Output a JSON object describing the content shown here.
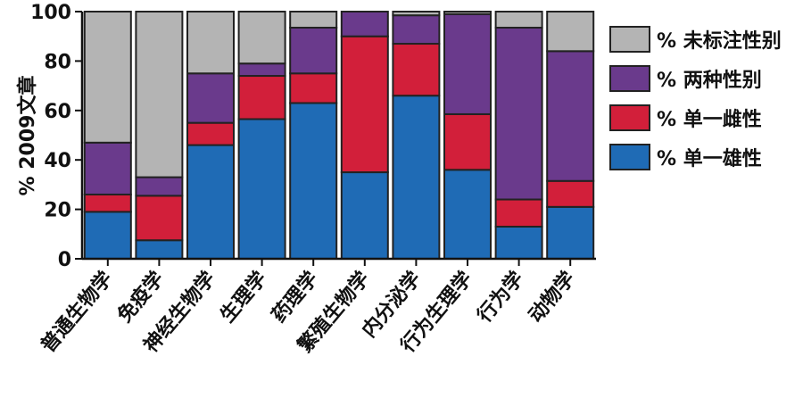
{
  "chart_data": {
    "type": "bar",
    "stacked": true,
    "ylabel": "% 2009文章",
    "ylim": [
      0,
      100
    ],
    "yticks": [
      "0",
      "20",
      "40",
      "60",
      "80",
      "100"
    ],
    "legend_position": "right",
    "categories": [
      "普通生物学",
      "免疫学",
      "神经生物学",
      "生理学",
      "药理学",
      "繁殖生物学",
      "内分泌学",
      "行为生理学",
      "行为学",
      "动物学"
    ],
    "series": [
      {
        "name": "% 单一雄性",
        "color": "#1f6bb5",
        "values": [
          19,
          7.5,
          46,
          56.5,
          63,
          35,
          66,
          36,
          13,
          21
        ]
      },
      {
        "name": "% 单一雌性",
        "color": "#d21f3a",
        "values": [
          7,
          18,
          9,
          17.5,
          12,
          55,
          21,
          22.5,
          11,
          10.5
        ]
      },
      {
        "name": "% 两种性别",
        "color": "#6a3a8c",
        "values": [
          21,
          7.5,
          20,
          5,
          18.5,
          10,
          11.5,
          40.5,
          69.5,
          52.5
        ]
      },
      {
        "name": "% 未标注性别",
        "color": "#b4b4b4",
        "values": [
          53,
          67,
          25,
          21,
          6.5,
          0,
          1.5,
          1,
          6.5,
          16
        ]
      }
    ]
  }
}
